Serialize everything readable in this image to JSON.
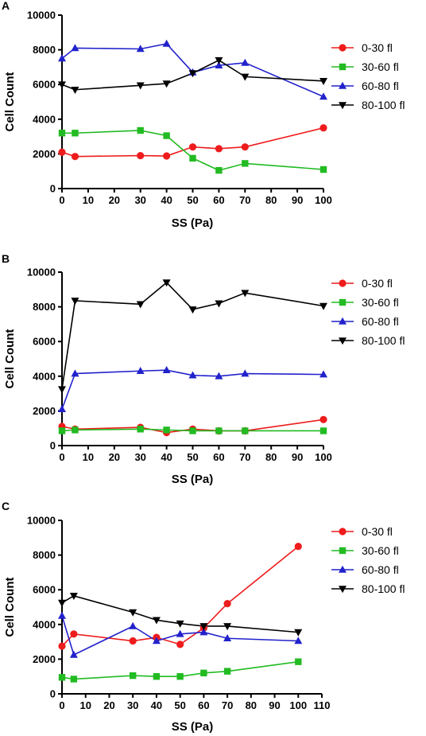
{
  "colors": {
    "0-30 fl": "#ee1c1c",
    "30-60 fl": "#22bb22",
    "60-80 fl": "#2222cc",
    "80-100 fl": "#000000"
  },
  "chart_data": [
    {
      "panel": "A",
      "type": "line",
      "xlabel": "SS (Pa)",
      "ylabel": "Cell Count",
      "xlim": [
        0,
        100
      ],
      "ylim": [
        0,
        10000
      ],
      "xticks": [
        0,
        10,
        20,
        30,
        40,
        50,
        60,
        70,
        80,
        90,
        100
      ],
      "yticks": [
        0,
        2000,
        4000,
        6000,
        8000,
        10000
      ],
      "legend_position": "right",
      "series": [
        {
          "name": "0-30 fl",
          "marker": "circle",
          "x": [
            0,
            5,
            30,
            40,
            50,
            60,
            70,
            100
          ],
          "y": [
            2100,
            1850,
            1900,
            1880,
            2400,
            2300,
            2400,
            3500
          ]
        },
        {
          "name": "30-60 fl",
          "marker": "square",
          "x": [
            0,
            5,
            30,
            40,
            50,
            60,
            70,
            100
          ],
          "y": [
            3200,
            3200,
            3350,
            3050,
            1750,
            1050,
            1450,
            1100
          ]
        },
        {
          "name": "60-80 fl",
          "marker": "triangle-up",
          "x": [
            0,
            5,
            30,
            40,
            50,
            60,
            70,
            100
          ],
          "y": [
            7500,
            8100,
            8050,
            8350,
            6700,
            7100,
            7250,
            5300
          ]
        },
        {
          "name": "80-100 fl",
          "marker": "triangle-down",
          "x": [
            0,
            5,
            30,
            40,
            50,
            60,
            70,
            100
          ],
          "y": [
            6000,
            5700,
            5950,
            6050,
            6650,
            7400,
            6450,
            6200
          ]
        }
      ]
    },
    {
      "panel": "B",
      "type": "line",
      "xlabel": "SS (Pa)",
      "ylabel": "Cell Count",
      "xlim": [
        0,
        100
      ],
      "ylim": [
        0,
        10000
      ],
      "xticks": [
        0,
        10,
        20,
        30,
        40,
        50,
        60,
        70,
        80,
        90,
        100
      ],
      "yticks": [
        0,
        2000,
        4000,
        6000,
        8000,
        10000
      ],
      "legend_position": "right",
      "series": [
        {
          "name": "0-30 fl",
          "marker": "circle",
          "x": [
            0,
            5,
            30,
            40,
            50,
            60,
            70,
            100
          ],
          "y": [
            1100,
            950,
            1050,
            750,
            950,
            850,
            850,
            1500
          ]
        },
        {
          "name": "30-60 fl",
          "marker": "square",
          "x": [
            0,
            5,
            30,
            40,
            50,
            60,
            70,
            100
          ],
          "y": [
            850,
            900,
            950,
            900,
            850,
            850,
            850,
            850
          ]
        },
        {
          "name": "60-80 fl",
          "marker": "triangle-up",
          "x": [
            0,
            5,
            30,
            40,
            50,
            60,
            70,
            100
          ],
          "y": [
            2100,
            4150,
            4300,
            4350,
            4050,
            4000,
            4150,
            4100
          ]
        },
        {
          "name": "80-100 fl",
          "marker": "triangle-down",
          "x": [
            0,
            5,
            30,
            40,
            50,
            60,
            70,
            100
          ],
          "y": [
            3250,
            8350,
            8150,
            9400,
            7850,
            8200,
            8800,
            8050
          ]
        }
      ]
    },
    {
      "panel": "C",
      "type": "line",
      "xlabel": "SS (Pa)",
      "ylabel": "Cell Count",
      "xlim": [
        0,
        110
      ],
      "ylim": [
        0,
        10000
      ],
      "xticks": [
        0,
        10,
        20,
        30,
        40,
        50,
        60,
        70,
        80,
        90,
        100,
        110
      ],
      "yticks": [
        0,
        2000,
        4000,
        6000,
        8000,
        10000
      ],
      "legend_position": "right",
      "series": [
        {
          "name": "0-30 fl",
          "marker": "circle",
          "x": [
            0,
            5,
            30,
            40,
            50,
            60,
            70,
            100
          ],
          "y": [
            2750,
            3450,
            3050,
            3250,
            2850,
            3800,
            5200,
            8500
          ]
        },
        {
          "name": "30-60 fl",
          "marker": "square",
          "x": [
            0,
            5,
            30,
            40,
            50,
            60,
            70,
            100
          ],
          "y": [
            950,
            850,
            1050,
            1000,
            1000,
            1200,
            1300,
            1850
          ]
        },
        {
          "name": "60-80 fl",
          "marker": "triangle-up",
          "x": [
            0,
            5,
            30,
            40,
            50,
            60,
            70,
            100
          ],
          "y": [
            4500,
            2250,
            3900,
            3050,
            3450,
            3550,
            3200,
            3050
          ]
        },
        {
          "name": "80-100 fl",
          "marker": "triangle-down",
          "x": [
            0,
            5,
            30,
            40,
            50,
            60,
            70,
            100
          ],
          "y": [
            5250,
            5650,
            4700,
            4250,
            4050,
            3900,
            3900,
            3550
          ]
        }
      ]
    }
  ]
}
